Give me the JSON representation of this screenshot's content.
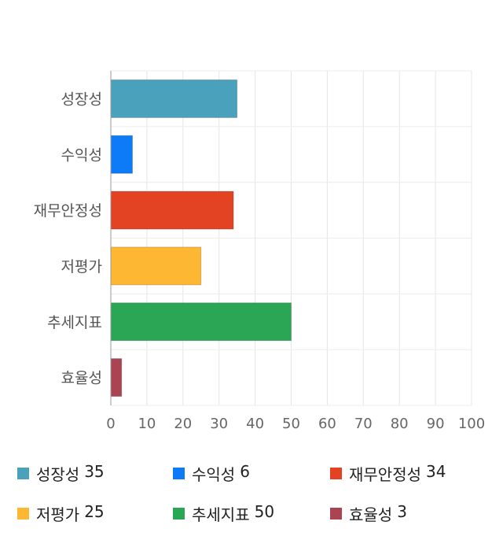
{
  "chart_data": {
    "type": "bar",
    "orientation": "horizontal",
    "categories": [
      "성장성",
      "수익성",
      "재무안정성",
      "저평가",
      "추세지표",
      "효율성"
    ],
    "values": [
      35,
      6,
      34,
      25,
      50,
      3
    ],
    "colors": [
      "#4aa1bc",
      "#0d7bf7",
      "#e34323",
      "#fdb733",
      "#2aa655",
      "#aa4452"
    ],
    "xlim": [
      0,
      100
    ],
    "xticks": [
      "0",
      "10",
      "20",
      "30",
      "40",
      "50",
      "60",
      "70",
      "80",
      "90",
      "100"
    ],
    "grid": true,
    "legend_placement": "bottom",
    "legend": [
      {
        "name": "성장성",
        "value": "35"
      },
      {
        "name": "수익성",
        "value": "6"
      },
      {
        "name": "재무안정성",
        "value": "34"
      },
      {
        "name": "저평가",
        "value": "25"
      },
      {
        "name": "추세지표",
        "value": "50"
      },
      {
        "name": "효율성",
        "value": "3"
      }
    ]
  }
}
